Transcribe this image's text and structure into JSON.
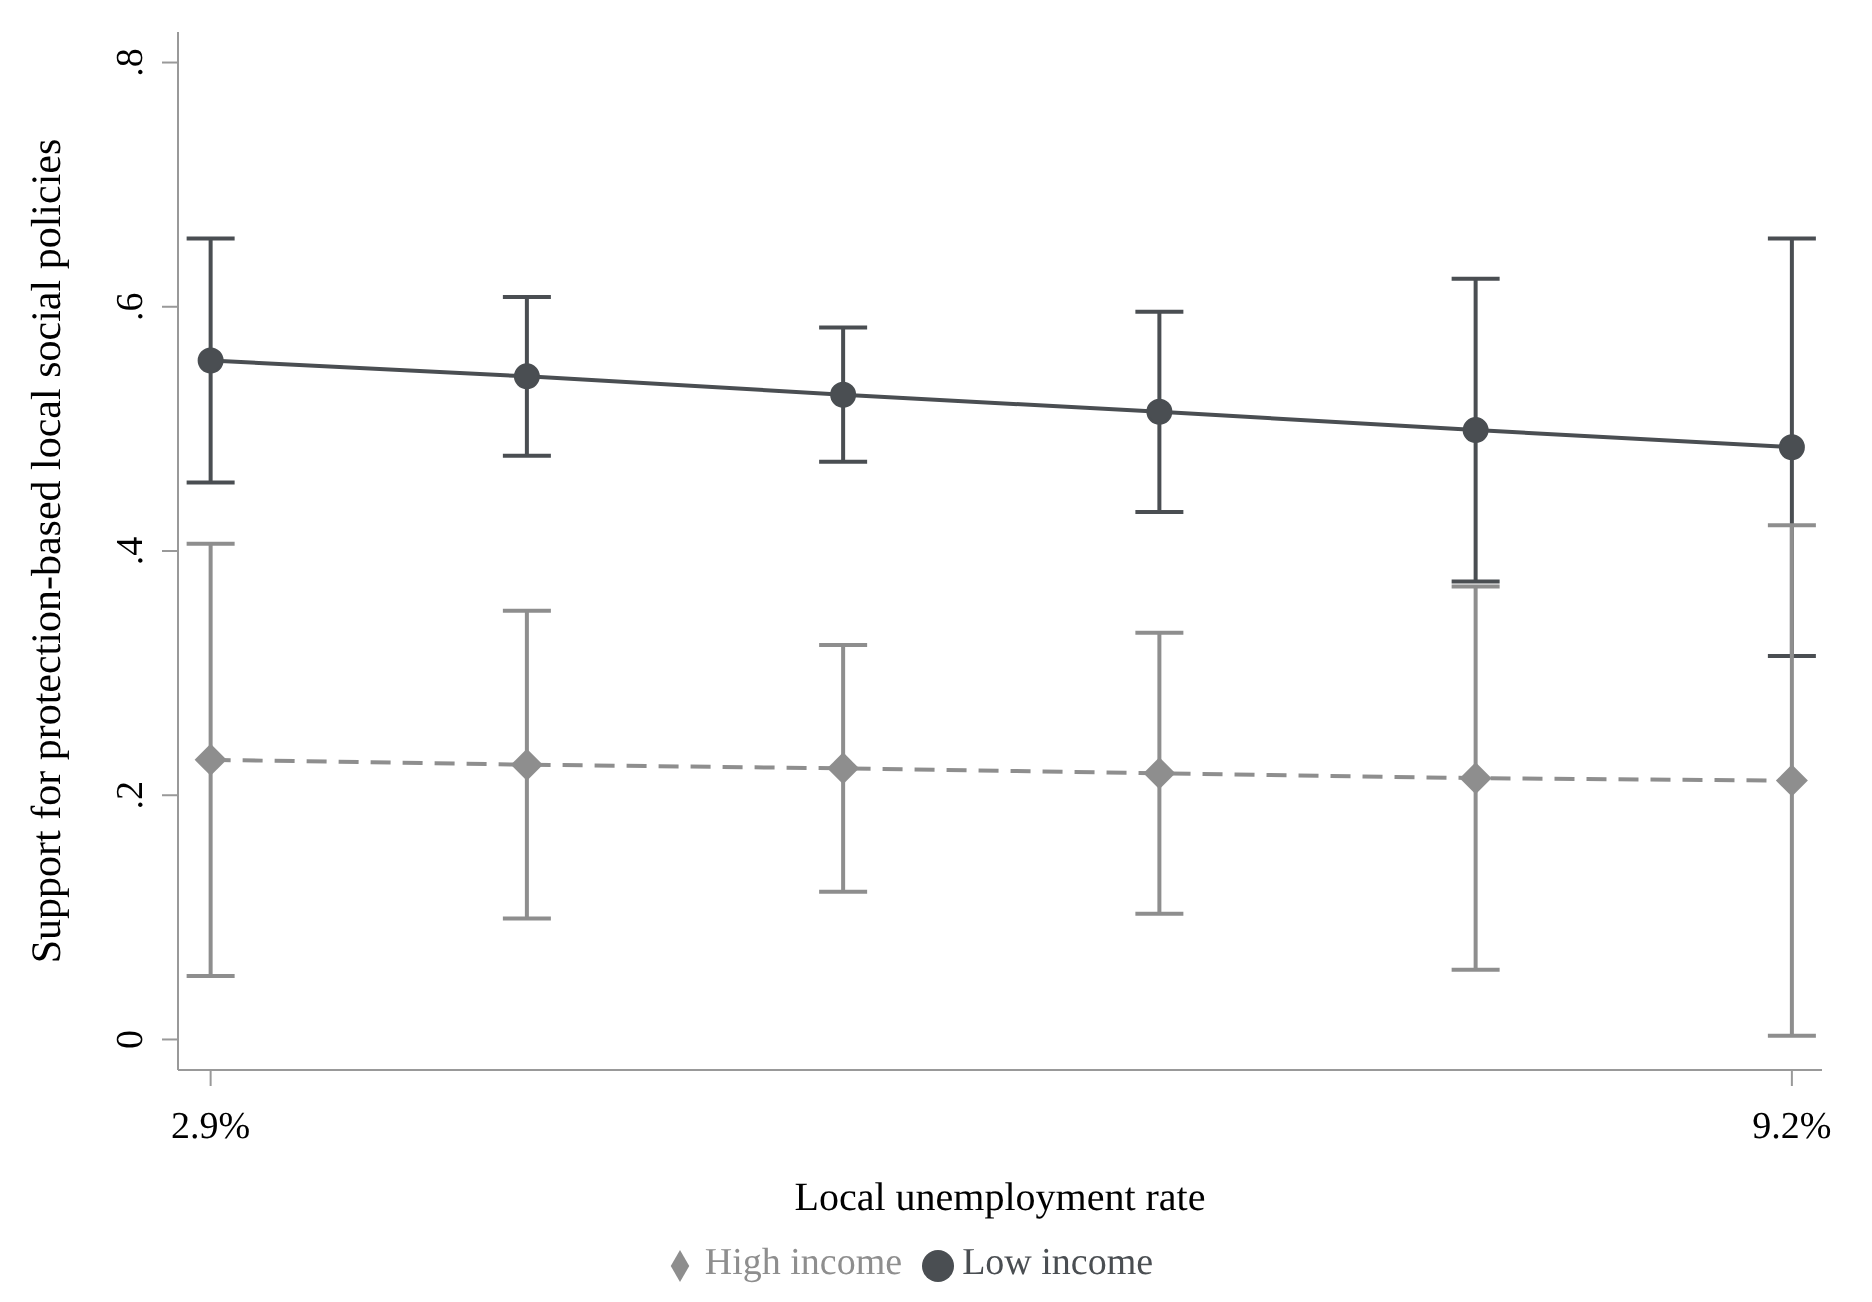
{
  "chart_data": {
    "type": "line",
    "xlabel": "Local unemployment rate",
    "ylabel": "Support for protection-based local social policies",
    "x": [
      2.9,
      4.16,
      5.42,
      6.68,
      7.94,
      9.2
    ],
    "xlim": [
      2.77,
      9.32
    ],
    "xticks": [
      {
        "value": 2.9,
        "label": "2.9%"
      },
      {
        "value": 9.2,
        "label": "9.2%"
      }
    ],
    "ylim": [
      -0.025,
      0.825
    ],
    "yticks": [
      {
        "value": 0,
        "label": "0"
      },
      {
        "value": 0.2,
        "label": ".2"
      },
      {
        "value": 0.4,
        "label": ".4"
      },
      {
        "value": 0.6,
        "label": ".6"
      },
      {
        "value": 0.8,
        "label": ".8"
      }
    ],
    "series": [
      {
        "name": "Low income",
        "color": "#4a4e52",
        "marker": "circle",
        "line_style": "solid",
        "values": [
          0.556,
          0.543,
          0.528,
          0.514,
          0.499,
          0.485
        ],
        "errors": [
          0.1,
          0.065,
          0.055,
          0.082,
          0.124,
          0.171
        ]
      },
      {
        "name": "High income",
        "color": "#8e8e8e",
        "marker": "diamond",
        "line_style": "dashed",
        "values": [
          0.229,
          0.225,
          0.222,
          0.218,
          0.214,
          0.212
        ],
        "errors": [
          0.177,
          0.126,
          0.101,
          0.115,
          0.157,
          0.209
        ]
      }
    ],
    "grid": false,
    "legend": "bottom"
  }
}
